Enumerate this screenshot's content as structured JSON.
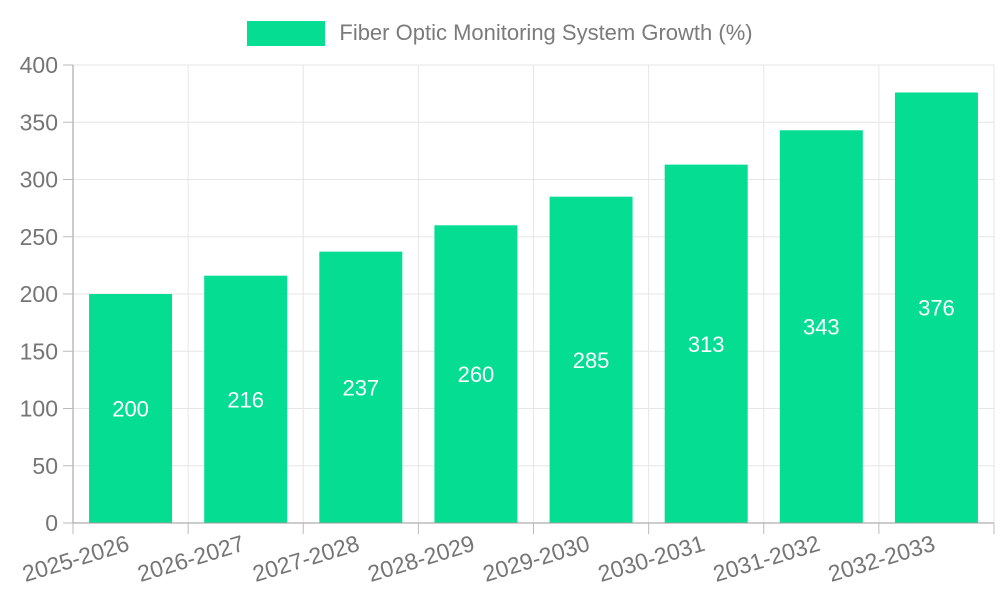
{
  "chart_data": {
    "type": "bar",
    "title": "Fiber Optic Monitoring System Growth (%)",
    "series_name": "Fiber Optic Monitoring System Growth (%)",
    "categories": [
      "2025-2026",
      "2026-2027",
      "2027-2028",
      "2028-2029",
      "2029-2030",
      "2030-2031",
      "2031-2032",
      "2032-2033"
    ],
    "values": [
      200,
      216,
      237,
      260,
      285,
      313,
      343,
      376
    ],
    "xlabel": "",
    "ylabel": "",
    "ylim": [
      0,
      400
    ],
    "ytick_step": 50,
    "ytick_labels": [
      "0",
      "50",
      "100",
      "150",
      "200",
      "250",
      "300",
      "350",
      "400"
    ],
    "grid": true,
    "legend_position": "top",
    "value_labels_shown": true,
    "colors": {
      "bar": "#05dd93",
      "value_label": "#ffffff",
      "axis_label": "#757575",
      "legend_label": "#7b7b7b",
      "grid_line": "#e6e6e6",
      "axis_line": "#9a9a9a",
      "tick_mark": "#bbbbbb",
      "background": "#ffffff"
    },
    "x_label_rotation_deg": -17
  }
}
